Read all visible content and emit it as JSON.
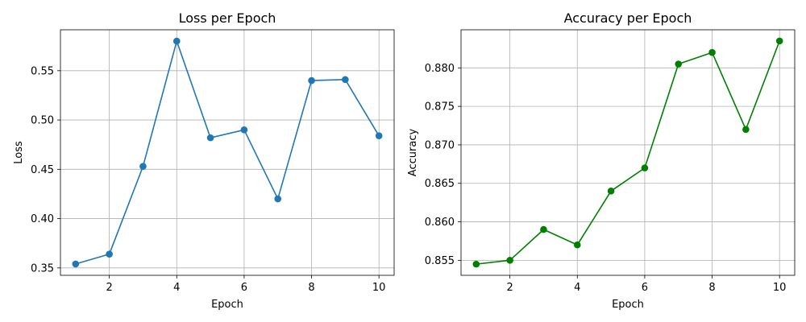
{
  "chart_data": [
    {
      "type": "line",
      "title": "Loss per Epoch",
      "xlabel": "Epoch",
      "ylabel": "Loss",
      "x": [
        1,
        2,
        3,
        4,
        5,
        6,
        7,
        8,
        9,
        10
      ],
      "series": [
        {
          "values": [
            0.354,
            0.364,
            0.453,
            0.58,
            0.482,
            0.49,
            0.42,
            0.54,
            0.541,
            0.484
          ],
          "color": "#1f77b4"
        }
      ],
      "xlim": [
        0.55,
        10.45
      ],
      "ylim": [
        0.3425,
        0.5915
      ],
      "xticks": [
        2,
        4,
        6,
        8,
        10
      ],
      "xtick_labels": [
        "2",
        "4",
        "6",
        "8",
        "10"
      ],
      "yticks": [
        0.35,
        0.4,
        0.45,
        0.5,
        0.55
      ],
      "ytick_labels": [
        "0.35",
        "0.40",
        "0.45",
        "0.50",
        "0.55"
      ],
      "grid": true,
      "marker": "circle"
    },
    {
      "type": "line",
      "title": "Accuracy per Epoch",
      "xlabel": "Epoch",
      "ylabel": "Accuracy",
      "x": [
        1,
        2,
        3,
        4,
        5,
        6,
        7,
        8,
        9,
        10
      ],
      "series": [
        {
          "values": [
            0.8545,
            0.855,
            0.859,
            0.857,
            0.864,
            0.867,
            0.8805,
            0.882,
            0.872,
            0.8835
          ],
          "color": "#008000"
        }
      ],
      "xlim": [
        0.55,
        10.45
      ],
      "ylim": [
        0.85305,
        0.88495
      ],
      "xticks": [
        2,
        4,
        6,
        8,
        10
      ],
      "xtick_labels": [
        "2",
        "4",
        "6",
        "8",
        "10"
      ],
      "yticks": [
        0.855,
        0.86,
        0.865,
        0.87,
        0.875,
        0.88
      ],
      "ytick_labels": [
        "0.855",
        "0.860",
        "0.865",
        "0.870",
        "0.875",
        "0.880"
      ],
      "grid": true,
      "marker": "circle"
    }
  ]
}
